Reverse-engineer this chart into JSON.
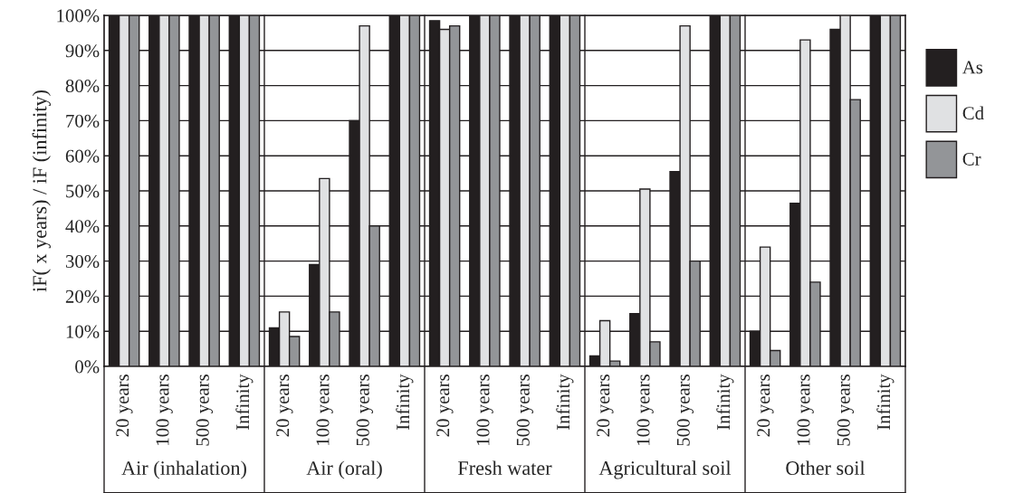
{
  "chart_data": {
    "type": "bar",
    "ylabel": "iF( x years) / iF (infinity)",
    "categories": [
      "20 years",
      "100 years",
      "500 years",
      "Infinity",
      "20 years",
      "100 years",
      "500 years",
      "Infinity",
      "20 years",
      "100 years",
      "500 years",
      "Infinity",
      "20 years",
      "100 years",
      "500 years",
      "Infinity",
      "20 years",
      "100 years",
      "500 years",
      "Infinity"
    ],
    "series": [
      {
        "name": "As",
        "color": "#231f20",
        "values": [
          100,
          100,
          100,
          100,
          11,
          29,
          70,
          100,
          98.5,
          100,
          100,
          100,
          3,
          15,
          55.5,
          100,
          10,
          46.5,
          96,
          100
        ]
      },
      {
        "name": "Cd",
        "color": "#e0e1e3",
        "values": [
          100,
          100,
          100,
          100,
          15.5,
          53.5,
          97,
          100,
          96,
          100,
          100,
          100,
          13,
          50.5,
          97,
          100,
          34,
          93,
          100,
          100
        ]
      },
      {
        "name": "Cr",
        "color": "#939598",
        "values": [
          100,
          100,
          100,
          100,
          8.5,
          15.5,
          40,
          100,
          97,
          100,
          100,
          100,
          1.5,
          7,
          30,
          100,
          4.5,
          24,
          76,
          100
        ]
      }
    ],
    "annotations": [
      "Air (inhalation)",
      "Air (oral)",
      "Fresh water",
      "Agricultural soil",
      "Other soil"
    ],
    "ylim": [
      0,
      100
    ],
    "yticks": [
      {
        "value": 0,
        "label": "0%"
      },
      {
        "value": 10,
        "label": "10%"
      },
      {
        "value": 20,
        "label": "20%"
      },
      {
        "value": 30,
        "label": "30%"
      },
      {
        "value": 40,
        "label": "40%"
      },
      {
        "value": 50,
        "label": "50%"
      },
      {
        "value": 60,
        "label": "60%"
      },
      {
        "value": 70,
        "label": "70%"
      },
      {
        "value": 80,
        "label": "80%"
      },
      {
        "value": 90,
        "label": "90%"
      },
      {
        "value": 100,
        "label": "100%"
      }
    ],
    "grid": "y",
    "legend": "right"
  }
}
